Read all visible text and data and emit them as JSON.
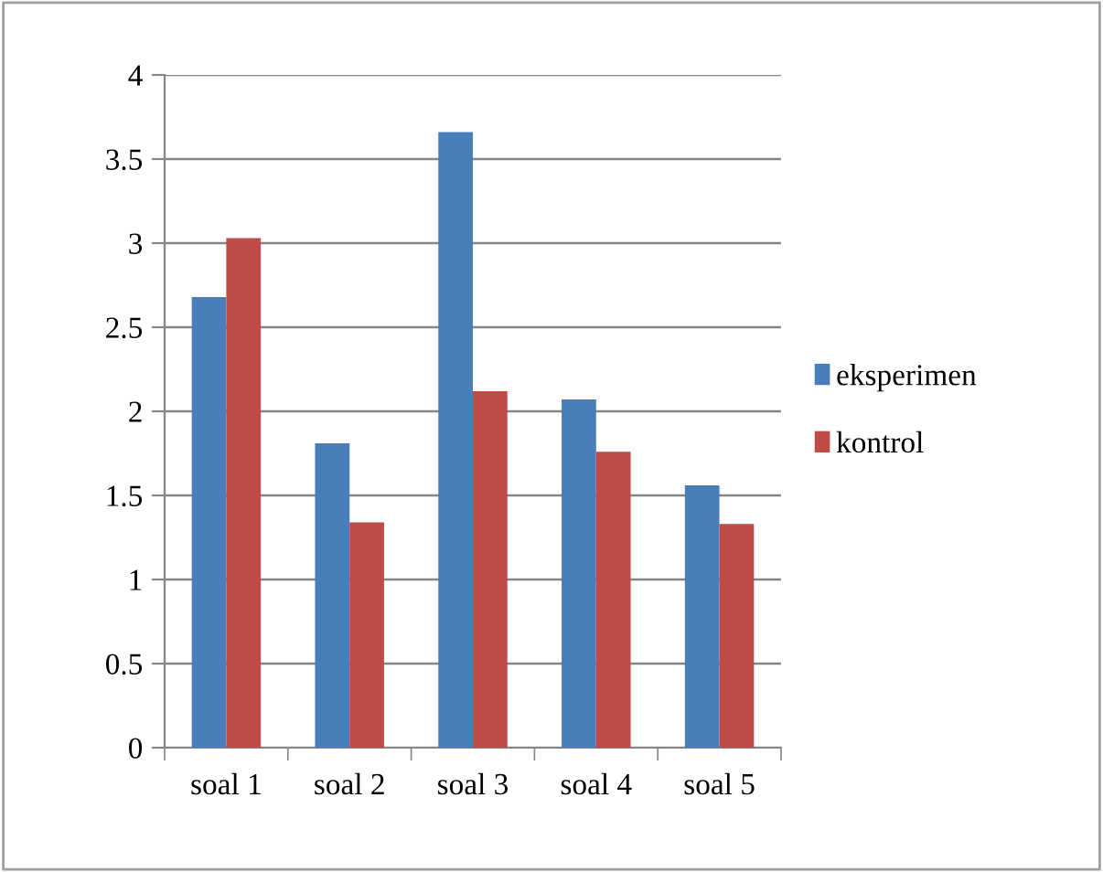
{
  "chart_data": {
    "type": "bar",
    "categories": [
      "soal 1",
      "soal 2",
      "soal 3",
      "soal 4",
      "soal 5"
    ],
    "series": [
      {
        "name": "eksperimen",
        "color": "#4a7ebb",
        "values": [
          2.68,
          1.81,
          3.66,
          2.07,
          1.56
        ]
      },
      {
        "name": "kontrol",
        "color": "#be4b48",
        "values": [
          3.03,
          1.34,
          2.12,
          1.76,
          1.33
        ]
      }
    ],
    "ylim": [
      0,
      4
    ],
    "yticks": [
      0,
      0.5,
      1,
      1.5,
      2,
      2.5,
      3,
      3.5,
      4
    ],
    "grid": "y",
    "legend": "right"
  }
}
